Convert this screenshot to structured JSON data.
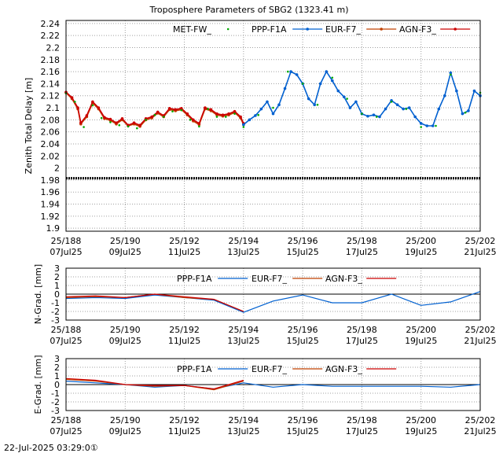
{
  "title": "Troposphere Parameters of SBG2 (1323.41 m)",
  "timestamp": "22-Jul-2025 03:29:0①",
  "colors": {
    "met": "#00aa00",
    "ppp": "#0060d0",
    "eur": "#c04000",
    "agn": "#cc0000",
    "zero": "#000000"
  },
  "chart_data": [
    {
      "name": "ztd-panel",
      "type": "line",
      "ylabel": "Zenith Total Delay [m]",
      "ylim": [
        1.895,
        2.245
      ],
      "yticks": [
        1.9,
        1.92,
        1.94,
        1.96,
        1.98,
        2.0,
        2.02,
        2.04,
        2.06,
        2.08,
        2.1,
        2.12,
        2.14,
        2.16,
        2.18,
        2.2,
        2.22,
        2.24
      ],
      "xlim": [
        188,
        202
      ],
      "xticks": [
        {
          "x": 188,
          "top": "25/188",
          "bottom": "07Jul25"
        },
        {
          "x": 190,
          "top": "25/190",
          "bottom": "09Jul25"
        },
        {
          "x": 192,
          "top": "25/192",
          "bottom": "11Jul25"
        },
        {
          "x": 194,
          "top": "25/194",
          "bottom": "13Jul25"
        },
        {
          "x": 196,
          "top": "25/196",
          "bottom": "15Jul25"
        },
        {
          "x": 198,
          "top": "25/198",
          "bottom": "17Jul25"
        },
        {
          "x": 200,
          "top": "25/200",
          "bottom": "19Jul25"
        },
        {
          "x": 202,
          "top": "25/202",
          "bottom": "21Jul25"
        }
      ],
      "legend": [
        {
          "label": "MET-FW_",
          "key": "met",
          "style": "dots"
        },
        {
          "label": "PPP-F1A",
          "key": "ppp",
          "style": "line-point"
        },
        {
          "label": "EUR-F7_",
          "key": "eur",
          "style": "line-point"
        },
        {
          "label": "AGN-F3_",
          "key": "agn",
          "style": "line-point"
        }
      ],
      "reference_line": 1.983,
      "series": [
        {
          "name": "EUR-F7_",
          "key": "eur",
          "x": [
            188.0,
            188.2,
            188.4,
            188.5,
            188.7,
            188.9,
            189.1,
            189.3,
            189.5,
            189.7,
            189.9,
            190.1,
            190.3,
            190.5,
            190.7,
            190.9,
            191.1,
            191.3,
            191.5,
            191.7,
            191.9,
            192.1,
            192.3,
            192.5,
            192.7,
            192.9,
            193.1,
            193.3,
            193.5,
            193.7,
            193.9,
            194.0
          ],
          "y": [
            2.125,
            2.115,
            2.098,
            2.073,
            2.085,
            2.108,
            2.098,
            2.082,
            2.079,
            2.073,
            2.08,
            2.07,
            2.073,
            2.069,
            2.08,
            2.083,
            2.091,
            2.085,
            2.097,
            2.095,
            2.097,
            2.088,
            2.078,
            2.072,
            2.098,
            2.095,
            2.088,
            2.086,
            2.088,
            2.092,
            2.083,
            2.072
          ]
        },
        {
          "name": "AGN-F3_",
          "key": "agn",
          "x": [
            188.0,
            188.2,
            188.4,
            188.5,
            188.7,
            188.9,
            189.1,
            189.3,
            189.5,
            189.7,
            189.9,
            190.1,
            190.3,
            190.5,
            190.7,
            190.9,
            191.1,
            191.3,
            191.5,
            191.7,
            191.9,
            192.1,
            192.3,
            192.5,
            192.7,
            192.9,
            193.1,
            193.3,
            193.5,
            193.7,
            193.9,
            194.0
          ],
          "y": [
            2.126,
            2.117,
            2.1,
            2.075,
            2.087,
            2.11,
            2.1,
            2.084,
            2.081,
            2.075,
            2.082,
            2.071,
            2.075,
            2.071,
            2.082,
            2.085,
            2.093,
            2.087,
            2.099,
            2.097,
            2.099,
            2.09,
            2.08,
            2.074,
            2.1,
            2.097,
            2.09,
            2.088,
            2.09,
            2.094,
            2.085,
            2.074
          ]
        },
        {
          "name": "PPP-F1A",
          "key": "ppp",
          "x": [
            194.0,
            194.2,
            194.4,
            194.6,
            194.8,
            195.0,
            195.2,
            195.4,
            195.6,
            195.8,
            196.0,
            196.2,
            196.4,
            196.6,
            196.8,
            197.0,
            197.2,
            197.4,
            197.6,
            197.8,
            198.0,
            198.2,
            198.4,
            198.6,
            198.8,
            199.0,
            199.2,
            199.4,
            199.6,
            199.8,
            200.0,
            200.2,
            200.4,
            200.6,
            200.8,
            201.0,
            201.2,
            201.4,
            201.6,
            201.8,
            202.0
          ],
          "y": [
            2.072,
            2.08,
            2.087,
            2.098,
            2.11,
            2.09,
            2.105,
            2.132,
            2.16,
            2.155,
            2.14,
            2.115,
            2.105,
            2.14,
            2.16,
            2.145,
            2.128,
            2.118,
            2.1,
            2.11,
            2.09,
            2.086,
            2.088,
            2.085,
            2.098,
            2.112,
            2.105,
            2.098,
            2.1,
            2.085,
            2.074,
            2.07,
            2.07,
            2.098,
            2.12,
            2.158,
            2.128,
            2.09,
            2.095,
            2.128,
            2.12
          ]
        },
        {
          "name": "MET-FW_",
          "key": "met",
          "x": [
            188.0,
            188.3,
            188.6,
            188.9,
            189.2,
            189.5,
            189.8,
            190.1,
            190.4,
            190.7,
            191.0,
            191.3,
            191.6,
            191.9,
            192.2,
            192.5,
            192.8,
            193.1,
            193.4,
            193.7,
            194.0,
            194.5,
            195.0,
            195.5,
            196.0,
            196.5,
            197.0,
            197.5,
            198.0,
            198.5,
            199.0,
            199.5,
            200.0,
            200.5,
            201.0,
            201.5,
            202.0
          ],
          "y": [
            2.124,
            2.11,
            2.068,
            2.104,
            2.083,
            2.076,
            2.071,
            2.069,
            2.066,
            2.08,
            2.088,
            2.085,
            2.094,
            2.096,
            2.08,
            2.069,
            2.098,
            2.085,
            2.085,
            2.09,
            2.068,
            2.088,
            2.1,
            2.16,
            2.14,
            2.105,
            2.15,
            2.115,
            2.09,
            2.085,
            2.11,
            2.098,
            2.068,
            2.07,
            2.155,
            2.092,
            2.125
          ]
        }
      ]
    },
    {
      "name": "ngrad-panel",
      "type": "line",
      "ylabel": "N-Grad. [mm]",
      "ylim": [
        -3,
        3
      ],
      "yticks": [
        3,
        2,
        1,
        0,
        -1,
        -2,
        -3
      ],
      "xlim": [
        188,
        202
      ],
      "xticks": [
        {
          "x": 188,
          "top": "25/188",
          "bottom": "07Jul25"
        },
        {
          "x": 190,
          "top": "25/190",
          "bottom": "09Jul25"
        },
        {
          "x": 192,
          "top": "25/192",
          "bottom": "11Jul25"
        },
        {
          "x": 194,
          "top": "25/194",
          "bottom": "13Jul25"
        },
        {
          "x": 196,
          "top": "25/196",
          "bottom": "15Jul25"
        },
        {
          "x": 198,
          "top": "25/198",
          "bottom": "17Jul25"
        },
        {
          "x": 200,
          "top": "25/200",
          "bottom": "19Jul25"
        },
        {
          "x": 202,
          "top": "25/202",
          "bottom": "21Jul25"
        }
      ],
      "legend": [
        {
          "label": "PPP-F1A",
          "key": "ppp",
          "style": "line"
        },
        {
          "label": "EUR-F7_",
          "key": "eur",
          "style": "line"
        },
        {
          "label": "AGN-F3_",
          "key": "agn",
          "style": "line"
        }
      ],
      "reference_line": 0,
      "series": [
        {
          "name": "PPP-F1A",
          "key": "ppp",
          "x": [
            188,
            189,
            190,
            191,
            192,
            193,
            194,
            195,
            196,
            197,
            198,
            199,
            200,
            201,
            202
          ],
          "y": [
            -0.5,
            -0.4,
            -0.5,
            -0.1,
            -0.4,
            -0.7,
            -2.1,
            -0.8,
            -0.1,
            -1.0,
            -1.0,
            0.0,
            -1.3,
            -0.9,
            0.3
          ]
        },
        {
          "name": "EUR-F7_",
          "key": "eur",
          "x": [
            188,
            189,
            190,
            191,
            192,
            193,
            194
          ],
          "y": [
            -0.4,
            -0.3,
            -0.4,
            0.0,
            -0.4,
            -0.6,
            -2.0
          ]
        },
        {
          "name": "AGN-F3_",
          "key": "agn",
          "x": [
            188,
            189,
            190,
            191,
            192,
            193,
            194
          ],
          "y": [
            -0.3,
            -0.2,
            -0.4,
            0.0,
            -0.3,
            -0.6,
            -2.0
          ]
        }
      ]
    },
    {
      "name": "egrad-panel",
      "type": "line",
      "ylabel": "E-Grad. [mm]",
      "ylim": [
        -3,
        3
      ],
      "yticks": [
        3,
        2,
        1,
        0,
        -1,
        -2,
        -3
      ],
      "xlim": [
        188,
        202
      ],
      "xticks": [
        {
          "x": 188,
          "top": "25/188",
          "bottom": "07Jul25"
        },
        {
          "x": 190,
          "top": "25/190",
          "bottom": "09Jul25"
        },
        {
          "x": 192,
          "top": "25/192",
          "bottom": "11Jul25"
        },
        {
          "x": 194,
          "top": "25/194",
          "bottom": "13Jul25"
        },
        {
          "x": 196,
          "top": "25/196",
          "bottom": "15Jul25"
        },
        {
          "x": 198,
          "top": "25/198",
          "bottom": "17Jul25"
        },
        {
          "x": 200,
          "top": "25/200",
          "bottom": "19Jul25"
        },
        {
          "x": 202,
          "top": "25/202",
          "bottom": "21Jul25"
        }
      ],
      "legend": [
        {
          "label": "PPP-F1A",
          "key": "ppp",
          "style": "line"
        },
        {
          "label": "EUR-F7_",
          "key": "eur",
          "style": "line"
        },
        {
          "label": "AGN-F3_",
          "key": "agn",
          "style": "line"
        }
      ],
      "reference_line": 0,
      "series": [
        {
          "name": "PPP-F1A",
          "key": "ppp",
          "x": [
            188,
            189,
            190,
            191,
            192,
            193,
            194,
            195,
            196,
            197,
            198,
            199,
            200,
            201,
            202
          ],
          "y": [
            0.4,
            0.2,
            0.0,
            -0.3,
            -0.1,
            -0.5,
            0.2,
            -0.3,
            0.0,
            -0.2,
            -0.2,
            -0.2,
            -0.2,
            -0.3,
            0.0
          ]
        },
        {
          "name": "EUR-F7_",
          "key": "eur",
          "x": [
            188,
            189,
            190,
            191,
            192,
            193,
            194
          ],
          "y": [
            0.6,
            0.4,
            0.0,
            -0.2,
            -0.1,
            -0.6,
            0.4
          ]
        },
        {
          "name": "AGN-F3_",
          "key": "agn",
          "x": [
            188,
            189,
            190,
            191,
            192,
            193,
            194
          ],
          "y": [
            0.7,
            0.5,
            0.0,
            -0.1,
            -0.1,
            -0.5,
            0.5
          ]
        }
      ]
    }
  ]
}
